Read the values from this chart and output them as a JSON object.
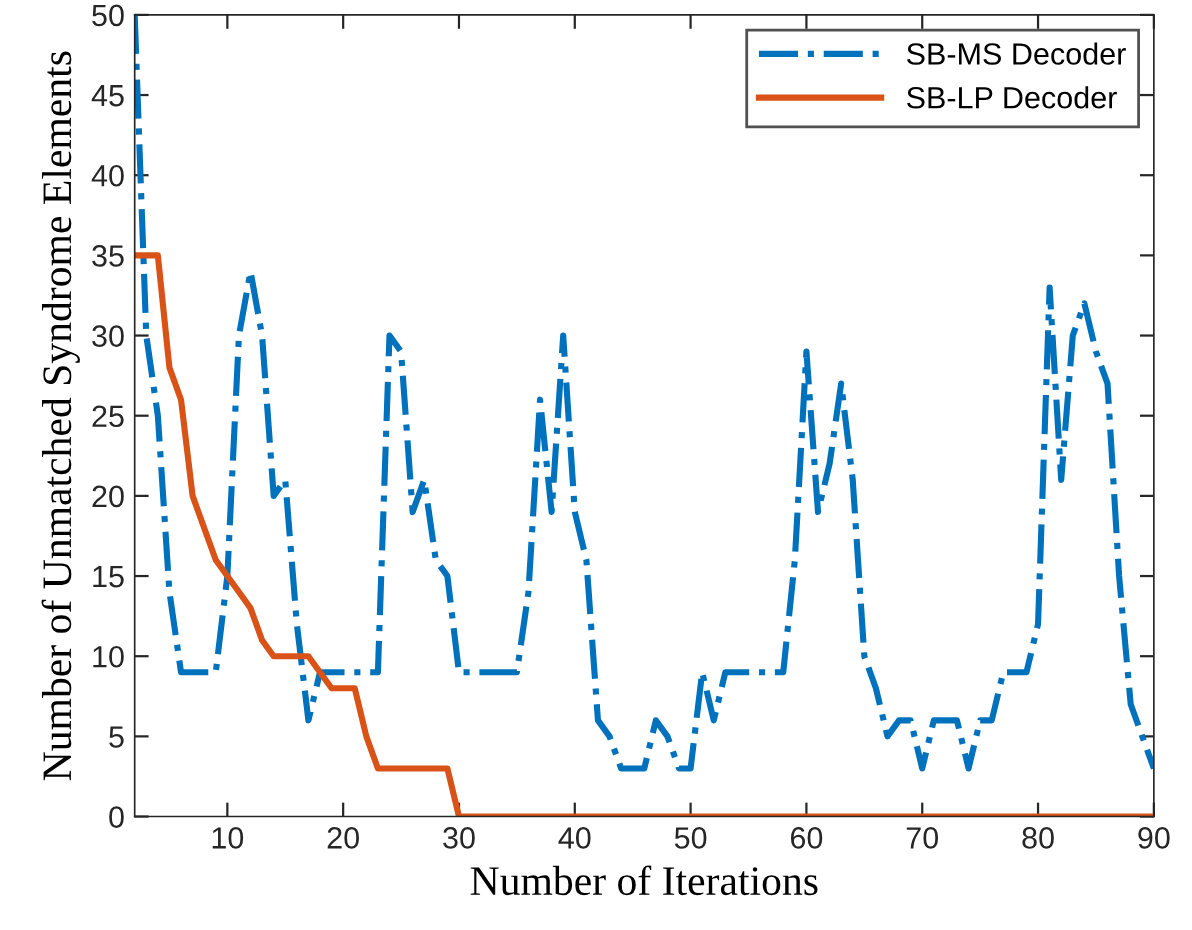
{
  "chart_data": {
    "type": "line",
    "xlabel": "Number of Iterations",
    "ylabel": "Number of Unmatched Syndrome Elements",
    "x": [
      2,
      3,
      4,
      5,
      6,
      7,
      8,
      9,
      10,
      11,
      12,
      13,
      14,
      15,
      16,
      17,
      18,
      19,
      20,
      21,
      22,
      23,
      24,
      25,
      26,
      27,
      28,
      29,
      30,
      31,
      32,
      33,
      34,
      35,
      36,
      37,
      38,
      39,
      40,
      41,
      42,
      43,
      44,
      45,
      46,
      47,
      48,
      49,
      50,
      51,
      52,
      53,
      54,
      55,
      56,
      57,
      58,
      59,
      60,
      61,
      62,
      63,
      64,
      65,
      66,
      67,
      68,
      69,
      70,
      71,
      72,
      73,
      74,
      75,
      76,
      77,
      78,
      79,
      80,
      81,
      82,
      83,
      84,
      85,
      86,
      87,
      88,
      89,
      90
    ],
    "series": [
      {
        "name": "SB-MS Decoder",
        "color": "#0072bd",
        "line_style": "dashdot",
        "values": [
          50,
          30,
          25,
          14,
          9,
          9,
          9,
          9,
          15,
          30,
          34,
          30,
          20,
          21,
          12,
          6,
          9,
          9,
          9,
          9,
          9,
          9,
          30,
          29,
          19,
          21,
          16,
          15,
          9,
          9,
          9,
          9,
          9,
          9,
          14,
          26,
          19,
          30,
          19,
          16,
          6,
          5,
          3,
          3,
          3,
          6,
          5,
          3,
          3,
          9,
          6,
          9,
          9,
          9,
          9,
          9,
          9,
          16,
          29,
          19,
          22,
          27,
          21,
          10,
          8,
          5,
          6,
          6,
          3,
          6,
          6,
          6,
          3,
          6,
          6,
          9,
          9,
          9,
          12,
          33,
          21,
          30,
          32,
          29,
          27,
          15,
          7,
          5,
          3
        ]
      },
      {
        "name": "SB-LP Decoder",
        "color": "#d95319",
        "line_style": "solid",
        "values": [
          35,
          35,
          35,
          28,
          26,
          20,
          18,
          16,
          15,
          14,
          13,
          11,
          10,
          10,
          10,
          10,
          9,
          8,
          8,
          8,
          5,
          3,
          3,
          3,
          3,
          3,
          3,
          3,
          0,
          0,
          0,
          0,
          0,
          0,
          0,
          0,
          0,
          0,
          0,
          0,
          0,
          0,
          0,
          0,
          0,
          0,
          0,
          0,
          0,
          0,
          0,
          0,
          0,
          0,
          0,
          0,
          0,
          0,
          0,
          0,
          0,
          0,
          0,
          0,
          0,
          0,
          0,
          0,
          0,
          0,
          0,
          0,
          0,
          0,
          0,
          0,
          0,
          0,
          0,
          0,
          0,
          0,
          0,
          0,
          0,
          0,
          0,
          0,
          0
        ]
      }
    ],
    "xlim": [
      2,
      90
    ],
    "ylim": [
      0,
      50
    ],
    "xticks": [
      10,
      20,
      30,
      40,
      50,
      60,
      70,
      80,
      90
    ],
    "yticks": [
      0,
      5,
      10,
      15,
      20,
      25,
      30,
      35,
      40,
      45,
      50
    ],
    "legend": "top right",
    "grid": false
  }
}
